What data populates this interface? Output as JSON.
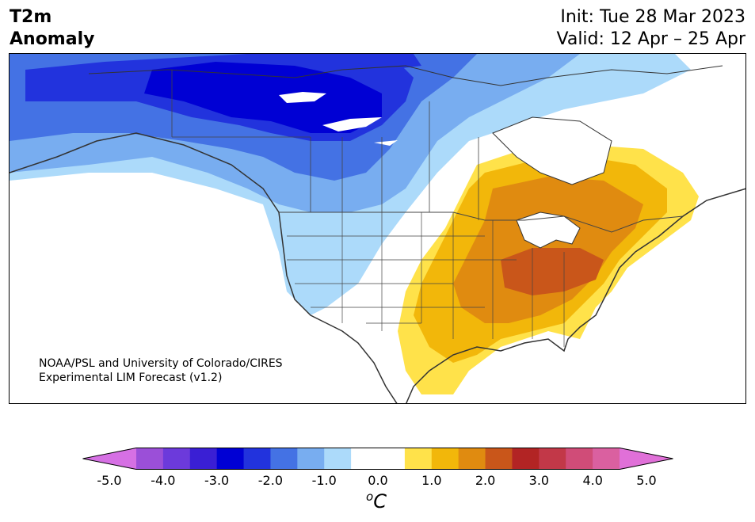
{
  "title": {
    "left_line1": "T2m",
    "left_line2": "Anomaly",
    "init": "Init: Tue 28 Mar 2023",
    "valid": "Valid: 12 Apr – 25 Apr"
  },
  "credit": {
    "line1": "NOAA/PSL and University of Colorado/CIRES",
    "line2": "Experimental LIM Forecast (v1.2)"
  },
  "colorbar": {
    "colors": [
      "#d670e4",
      "#9b4fd8",
      "#6c3adb",
      "#3a1fd4",
      "#0000d4",
      "#2233dd",
      "#4472e4",
      "#78adf0",
      "#acdafa",
      "#ffffff",
      "#ffffff",
      "#ffe24a",
      "#f2b70a",
      "#e08b10",
      "#c9561a",
      "#b22424",
      "#c23848",
      "#d04c78",
      "#da60a0",
      "#e070d8"
    ],
    "ticks": [
      "-5.0",
      "-4.0",
      "-3.0",
      "-2.0",
      "-1.0",
      "0.0",
      "1.0",
      "2.0",
      "3.0",
      "4.0",
      "5.0"
    ],
    "unit_sup": "o",
    "unit": "C"
  },
  "map": {
    "land_color": "#ffffff",
    "coast_color": "#333333"
  }
}
